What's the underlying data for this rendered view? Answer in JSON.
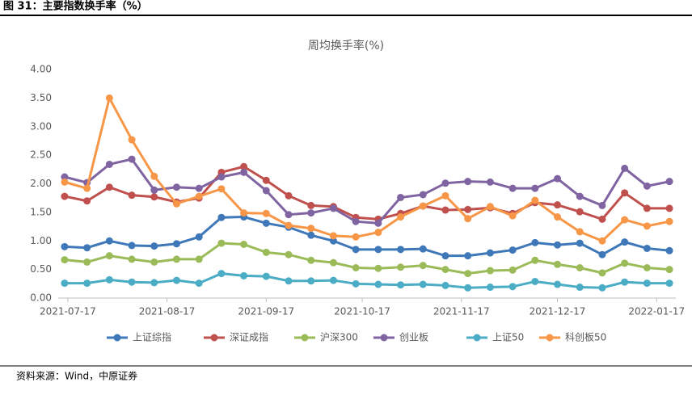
{
  "header": "图 31：主要指数换手率（%）",
  "source": "资料来源：Wind，中原证券",
  "chart_data": {
    "type": "line",
    "title": "周均换手率(%)",
    "x": [
      "2021-07-16",
      "2021-07-23",
      "2021-07-30",
      "2021-08-06",
      "2021-08-13",
      "2021-08-20",
      "2021-08-27",
      "2021-09-03",
      "2021-09-10",
      "2021-09-17",
      "2021-09-24",
      "2021-10-01",
      "2021-10-08",
      "2021-10-15",
      "2021-10-22",
      "2021-10-29",
      "2021-11-05",
      "2021-11-12",
      "2021-11-19",
      "2021-11-26",
      "2021-12-03",
      "2021-12-10",
      "2021-12-17",
      "2021-12-24",
      "2021-12-31",
      "2022-01-07",
      "2022-01-14",
      "2022-01-21"
    ],
    "xlim": [
      "2021-07-14",
      "2022-01-23"
    ],
    "xticks": [
      "2021-07-17",
      "2021-08-17",
      "2021-09-17",
      "2021-10-17",
      "2021-11-17",
      "2021-12-17",
      "2022-01-17"
    ],
    "ylim": [
      0,
      4
    ],
    "yticks": [
      {
        "value": 0,
        "label": "0.00"
      },
      {
        "value": 0.5,
        "label": "0.50"
      },
      {
        "value": 1,
        "label": "1.00"
      },
      {
        "value": 1.5,
        "label": "1.50"
      },
      {
        "value": 2,
        "label": "2.00"
      },
      {
        "value": 2.5,
        "label": "2.50"
      },
      {
        "value": 3,
        "label": "3.00"
      },
      {
        "value": 3.5,
        "label": "3.50"
      },
      {
        "value": 4,
        "label": "4.00"
      }
    ],
    "legend": "bottom",
    "series": [
      {
        "name": "上证综指",
        "color": "#3f78b8",
        "values": [
          0.9,
          0.88,
          1.0,
          0.92,
          0.91,
          0.95,
          1.07,
          1.41,
          1.42,
          1.31,
          1.24,
          1.1,
          1.0,
          0.85,
          0.85,
          0.85,
          0.86,
          0.74,
          0.74,
          0.79,
          0.84,
          0.97,
          0.93,
          0.96,
          0.76,
          0.98,
          0.87,
          0.83
        ]
      },
      {
        "name": "深证成指",
        "color": "#c0504d",
        "values": [
          1.78,
          1.7,
          1.94,
          1.8,
          1.77,
          1.68,
          1.75,
          2.2,
          2.3,
          2.06,
          1.79,
          1.62,
          1.6,
          1.41,
          1.38,
          1.48,
          1.61,
          1.54,
          1.55,
          1.58,
          1.48,
          1.67,
          1.63,
          1.51,
          1.38,
          1.84,
          1.57,
          1.57
        ]
      },
      {
        "name": "沪深300",
        "color": "#9bbb59",
        "values": [
          0.67,
          0.63,
          0.74,
          0.68,
          0.63,
          0.68,
          0.68,
          0.96,
          0.94,
          0.8,
          0.76,
          0.66,
          0.62,
          0.53,
          0.52,
          0.54,
          0.57,
          0.5,
          0.43,
          0.48,
          0.49,
          0.66,
          0.59,
          0.53,
          0.44,
          0.61,
          0.53,
          0.5
        ]
      },
      {
        "name": "创业板",
        "color": "#8064a2",
        "values": [
          2.12,
          2.02,
          2.34,
          2.43,
          1.89,
          1.94,
          1.92,
          2.12,
          2.2,
          1.88,
          1.46,
          1.49,
          1.57,
          1.34,
          1.31,
          1.76,
          1.81,
          2.01,
          2.04,
          2.03,
          1.92,
          1.92,
          2.09,
          1.78,
          1.62,
          2.27,
          1.96,
          2.04
        ]
      },
      {
        "name": "上证50",
        "color": "#4bacc6",
        "values": [
          0.26,
          0.26,
          0.32,
          0.28,
          0.27,
          0.31,
          0.26,
          0.43,
          0.39,
          0.38,
          0.3,
          0.3,
          0.31,
          0.25,
          0.24,
          0.23,
          0.24,
          0.22,
          0.18,
          0.19,
          0.2,
          0.29,
          0.24,
          0.19,
          0.18,
          0.28,
          0.26,
          0.26
        ]
      },
      {
        "name": "科创板50",
        "color": "#f79646",
        "values": [
          2.03,
          1.92,
          3.5,
          2.77,
          2.13,
          1.65,
          1.78,
          1.91,
          1.49,
          1.48,
          1.27,
          1.22,
          1.09,
          1.07,
          1.15,
          1.42,
          1.61,
          1.79,
          1.39,
          1.6,
          1.44,
          1.71,
          1.42,
          1.16,
          1.0,
          1.37,
          1.26,
          1.34
        ]
      }
    ]
  }
}
